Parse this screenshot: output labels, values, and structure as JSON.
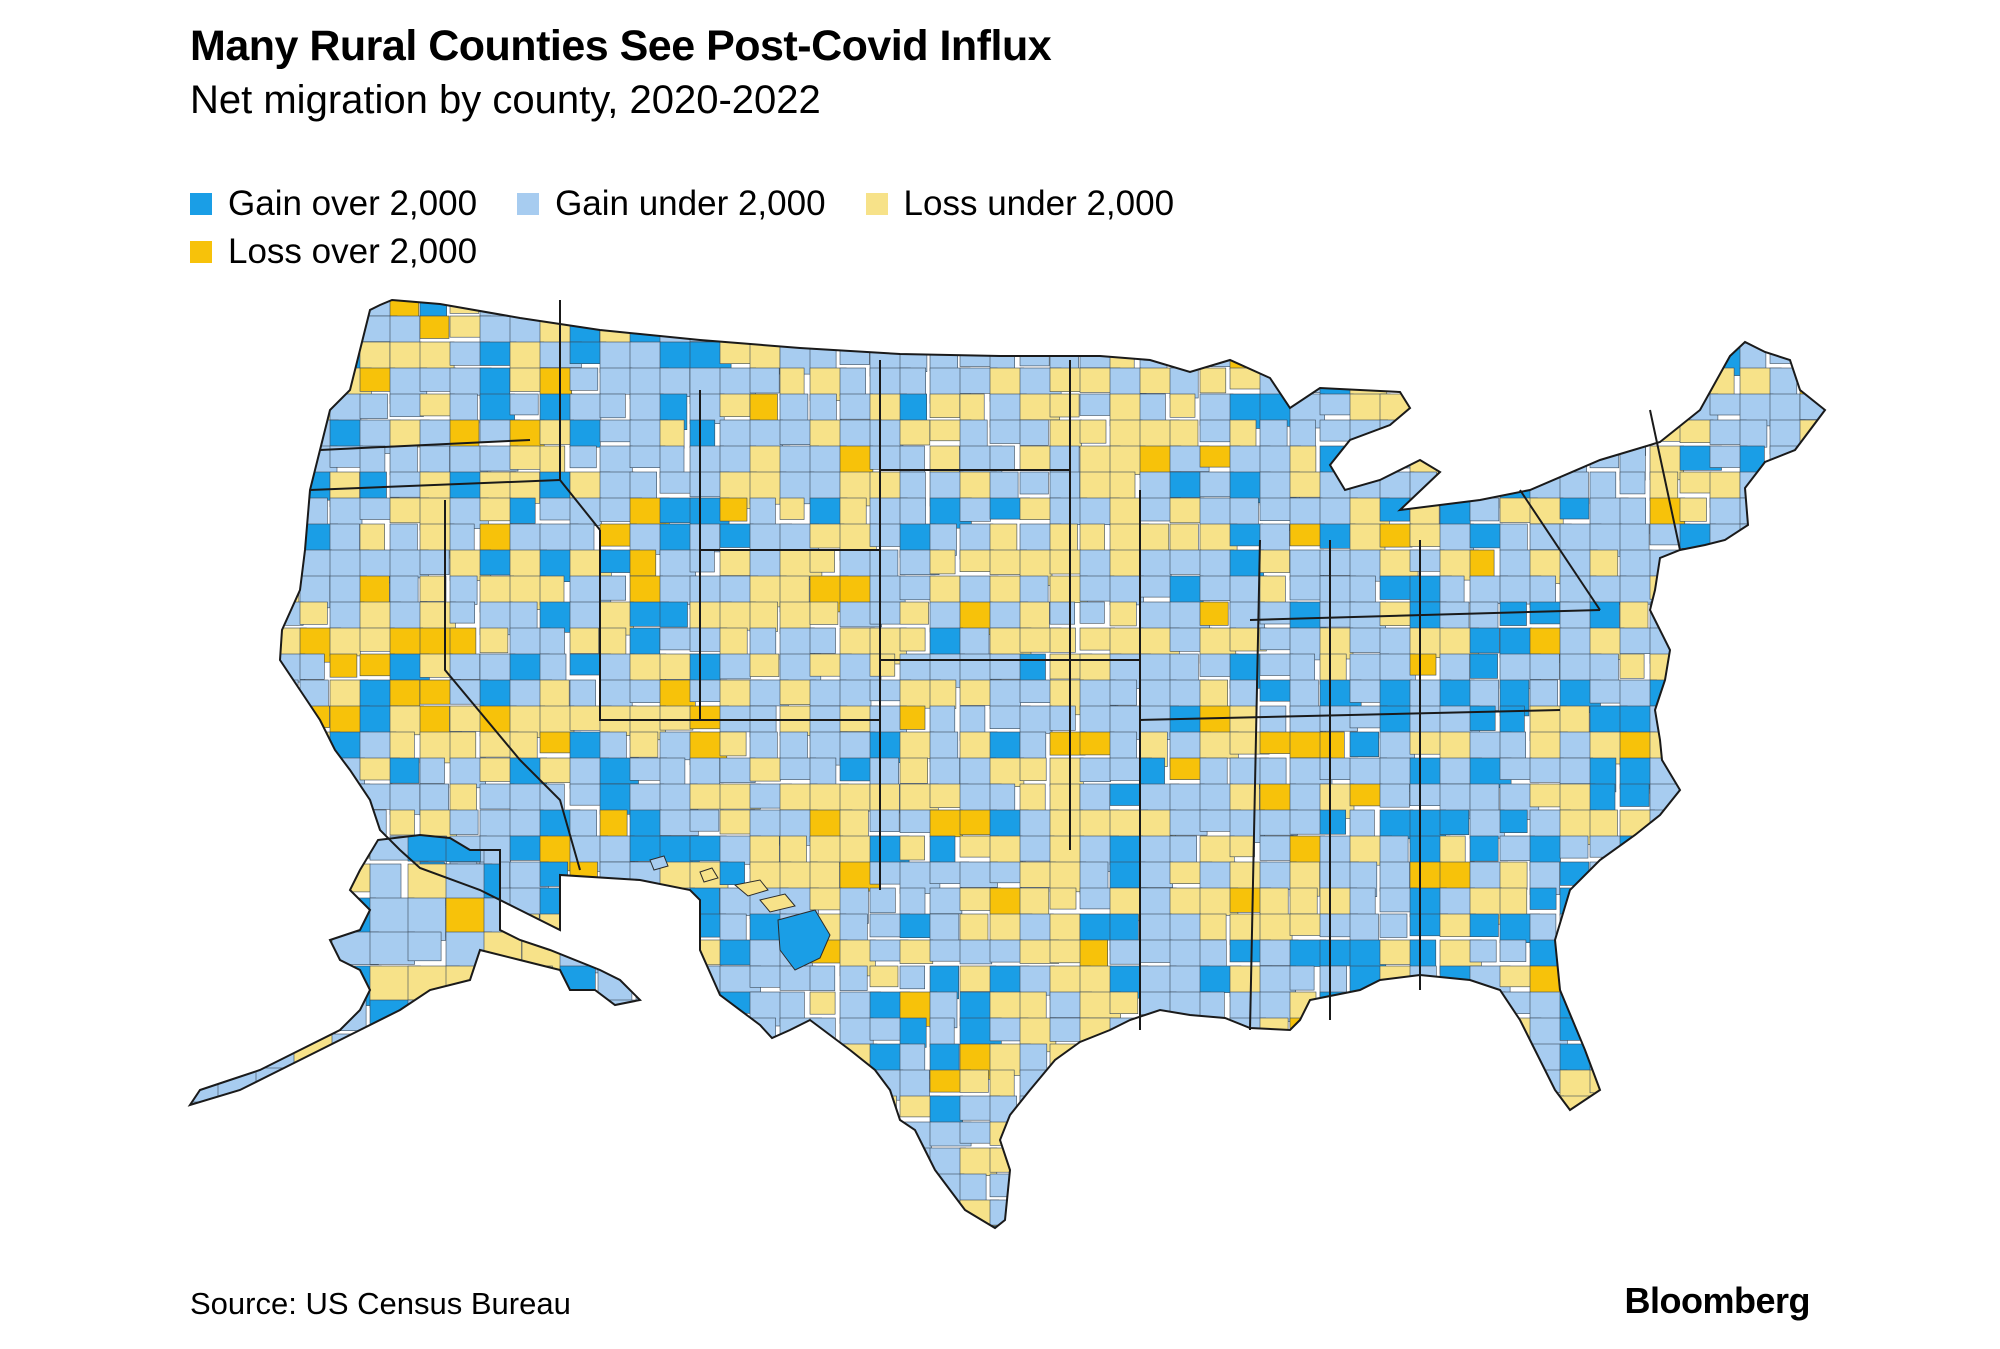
{
  "header": {
    "title": "Many Rural Counties See Post-Covid Influx",
    "subtitle": "Net migration by county, 2020-2022"
  },
  "legend": {
    "items": [
      {
        "label": "Gain over 2,000",
        "color": "#1a9ee6"
      },
      {
        "label": "Gain under 2,000",
        "color": "#a7ccf0"
      },
      {
        "label": "Loss under 2,000",
        "color": "#f7e289"
      },
      {
        "label": "Loss over 2,000",
        "color": "#f7c20a"
      }
    ]
  },
  "footer": {
    "source": "Source: US Census Bureau",
    "brand": "Bloomberg"
  }
}
